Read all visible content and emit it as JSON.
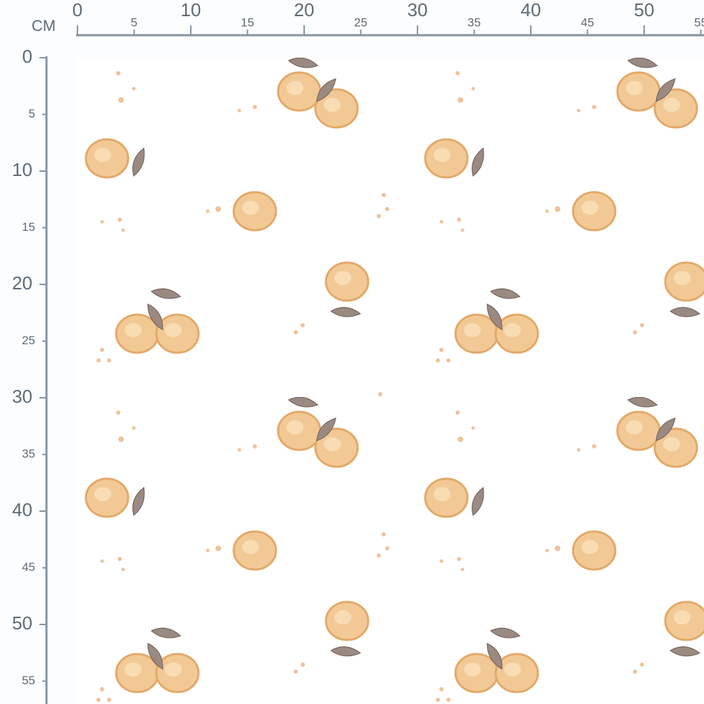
{
  "ruler": {
    "unit": "CM",
    "top": [
      0,
      5,
      10,
      15,
      20,
      25,
      30,
      35,
      40,
      45,
      50,
      55
    ],
    "left": [
      0,
      5,
      10,
      15,
      20,
      25,
      30,
      35,
      40,
      45,
      50,
      55
    ]
  }
}
